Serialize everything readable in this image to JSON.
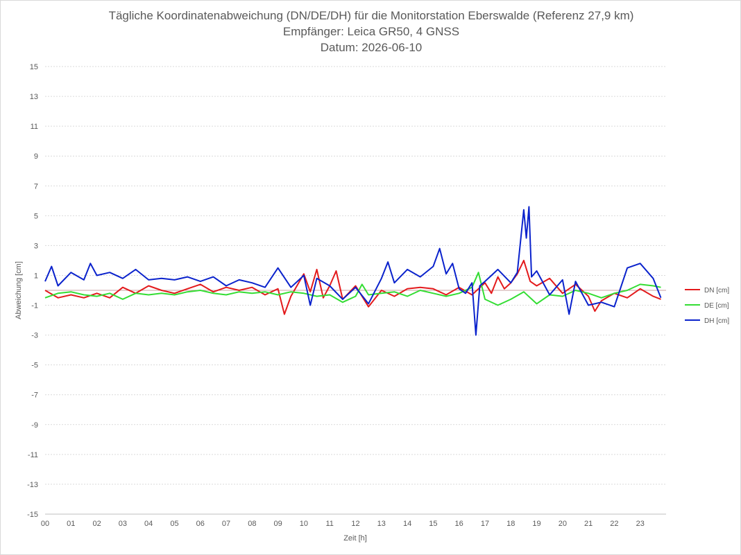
{
  "chart_data": {
    "type": "line",
    "title": "Tägliche Koordinatenabweichung (DN/DE/DH) für die Monitorstation Eberswalde (Referenz 27,9 km)",
    "subtitle": "Empfänger: Leica GR50, 4 GNSS",
    "date_line": "Datum: 2026-06-10",
    "xlabel": "Zeit [h]",
    "ylabel": "Abweichung [cm]",
    "xlim": [
      0,
      24
    ],
    "ylim": [
      -15,
      15
    ],
    "x_ticks": [
      "00",
      "01",
      "02",
      "03",
      "04",
      "05",
      "06",
      "07",
      "08",
      "09",
      "10",
      "11",
      "12",
      "13",
      "14",
      "15",
      "16",
      "17",
      "18",
      "19",
      "20",
      "21",
      "22",
      "23"
    ],
    "y_ticks": [
      15,
      13,
      11,
      9,
      7,
      5,
      3,
      1,
      -1,
      -3,
      -5,
      -7,
      -9,
      -11,
      -13,
      -15
    ],
    "grid": true,
    "legend_position": "right",
    "series": [
      {
        "name": "DN [cm]",
        "color": "#e31a1c",
        "x": [
          0,
          0.5,
          1,
          1.5,
          2,
          2.5,
          3,
          3.5,
          4,
          4.5,
          5,
          5.5,
          6,
          6.5,
          7,
          7.5,
          8,
          8.5,
          9,
          9.25,
          9.5,
          10,
          10.25,
          10.5,
          10.75,
          11,
          11.25,
          11.5,
          12,
          12.5,
          13,
          13.5,
          14,
          14.5,
          15,
          15.5,
          16,
          16.5,
          17,
          17.25,
          17.5,
          17.75,
          18,
          18.25,
          18.5,
          18.75,
          19,
          19.5,
          20,
          20.5,
          21,
          21.25,
          21.5,
          22,
          22.5,
          23,
          23.5,
          23.8
        ],
        "y": [
          0,
          -0.5,
          -0.3,
          -0.5,
          -0.2,
          -0.5,
          0.2,
          -0.2,
          0.3,
          0,
          -0.2,
          0.1,
          0.4,
          -0.1,
          0.2,
          0,
          0.2,
          -0.3,
          0.1,
          -1.6,
          -0.4,
          1.1,
          -0.1,
          1.4,
          -0.5,
          0.3,
          1.3,
          -0.6,
          0.3,
          -1.1,
          0,
          -0.4,
          0.1,
          0.2,
          0.1,
          -0.3,
          0.2,
          -0.3,
          0.5,
          -0.2,
          0.9,
          0.1,
          0.5,
          1.1,
          2,
          0.6,
          0.3,
          0.8,
          -0.2,
          0.4,
          -0.4,
          -1.4,
          -0.7,
          -0.2,
          -0.5,
          0.1,
          -0.4,
          -0.6
        ]
      },
      {
        "name": "DE [cm]",
        "color": "#33dd33",
        "x": [
          0,
          0.5,
          1,
          1.5,
          2,
          2.5,
          3,
          3.5,
          4,
          4.5,
          5,
          5.5,
          6,
          6.5,
          7,
          7.5,
          8,
          8.5,
          9,
          9.5,
          10,
          10.5,
          11,
          11.5,
          12,
          12.25,
          12.5,
          13,
          13.5,
          14,
          14.5,
          15,
          15.5,
          16,
          16.5,
          16.75,
          17,
          17.5,
          18,
          18.5,
          19,
          19.5,
          20,
          20.5,
          21,
          21.5,
          22,
          22.5,
          23,
          23.5,
          23.8
        ],
        "y": [
          -0.5,
          -0.2,
          -0.1,
          -0.3,
          -0.4,
          -0.2,
          -0.6,
          -0.2,
          -0.3,
          -0.2,
          -0.3,
          -0.1,
          0,
          -0.2,
          -0.3,
          -0.1,
          -0.2,
          -0.1,
          -0.3,
          -0.1,
          -0.2,
          -0.4,
          -0.3,
          -0.8,
          -0.4,
          0.4,
          -0.3,
          -0.2,
          -0.1,
          -0.4,
          0,
          -0.2,
          -0.4,
          -0.2,
          0.2,
          1.2,
          -0.6,
          -1,
          -0.6,
          -0.1,
          -0.9,
          -0.3,
          -0.4,
          0,
          -0.2,
          -0.5,
          -0.2,
          0,
          0.4,
          0.3,
          0.2
        ]
      },
      {
        "name": "DH [cm]",
        "color": "#0a22cc",
        "x": [
          0,
          0.25,
          0.5,
          1,
          1.5,
          1.75,
          2,
          2.5,
          3,
          3.5,
          4,
          4.5,
          5,
          5.5,
          6,
          6.5,
          7,
          7.5,
          8,
          8.5,
          9,
          9.5,
          10,
          10.25,
          10.5,
          11,
          11.5,
          12,
          12.5,
          13,
          13.25,
          13.5,
          14,
          14.5,
          15,
          15.25,
          15.5,
          15.75,
          16,
          16.25,
          16.5,
          16.65,
          16.8,
          17,
          17.5,
          18,
          18.25,
          18.5,
          18.6,
          18.7,
          18.8,
          19,
          19.5,
          20,
          20.25,
          20.5,
          21,
          21.5,
          22,
          22.5,
          23,
          23.5,
          23.8
        ],
        "y": [
          0.6,
          1.6,
          0.3,
          1.2,
          0.7,
          1.8,
          1,
          1.2,
          0.8,
          1.4,
          0.7,
          0.8,
          0.7,
          0.9,
          0.6,
          0.9,
          0.3,
          0.7,
          0.5,
          0.2,
          1.5,
          0.2,
          1,
          -1,
          0.8,
          0.3,
          -0.6,
          0.2,
          -0.9,
          0.8,
          1.9,
          0.5,
          1.4,
          0.9,
          1.6,
          2.8,
          1.1,
          1.8,
          0.1,
          -0.2,
          0.5,
          -3,
          0.3,
          0.6,
          1.4,
          0.5,
          1.2,
          5.4,
          3.5,
          5.6,
          0.9,
          1.3,
          -0.3,
          0.7,
          -1.6,
          0.6,
          -1,
          -0.8,
          -1.1,
          1.5,
          1.8,
          0.8,
          -0.5
        ]
      }
    ]
  }
}
